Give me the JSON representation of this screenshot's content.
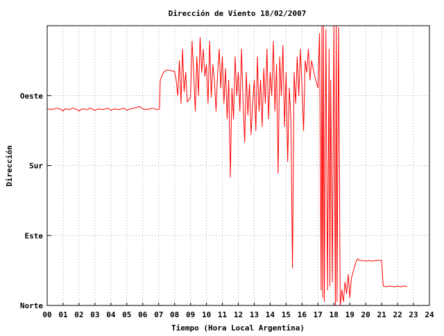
{
  "chart_data": {
    "type": "line",
    "title": "Dirección de Viento 18/02/2007",
    "xlabel": "Tiempo (Hora Local Argentina)",
    "ylabel": "Dirección",
    "xlim": [
      0,
      24
    ],
    "ylim": [
      0,
      360
    ],
    "x_ticks": [
      {
        "value": 0,
        "label": "00"
      },
      {
        "value": 1,
        "label": "01"
      },
      {
        "value": 2,
        "label": "02"
      },
      {
        "value": 3,
        "label": "03"
      },
      {
        "value": 4,
        "label": "04"
      },
      {
        "value": 5,
        "label": "05"
      },
      {
        "value": 6,
        "label": "06"
      },
      {
        "value": 7,
        "label": "07"
      },
      {
        "value": 8,
        "label": "08"
      },
      {
        "value": 9,
        "label": "09"
      },
      {
        "value": 10,
        "label": "10"
      },
      {
        "value": 11,
        "label": "11"
      },
      {
        "value": 12,
        "label": "12"
      },
      {
        "value": 13,
        "label": "13"
      },
      {
        "value": 14,
        "label": "14"
      },
      {
        "value": 15,
        "label": "15"
      },
      {
        "value": 16,
        "label": "16"
      },
      {
        "value": 17,
        "label": "17"
      },
      {
        "value": 18,
        "label": "18"
      },
      {
        "value": 19,
        "label": "19"
      },
      {
        "value": 20,
        "label": "20"
      },
      {
        "value": 21,
        "label": "21"
      },
      {
        "value": 22,
        "label": "22"
      },
      {
        "value": 23,
        "label": "23"
      },
      {
        "value": 24,
        "label": "24"
      }
    ],
    "y_ticks": [
      {
        "value": 0,
        "label": "Norte"
      },
      {
        "value": 90,
        "label": "Este"
      },
      {
        "value": 180,
        "label": "Sur"
      },
      {
        "value": 270,
        "label": "Oeste"
      }
    ],
    "grid": true,
    "series": [
      {
        "color": "#ff0000",
        "points": [
          [
            0.0,
            253
          ],
          [
            0.3,
            252
          ],
          [
            0.6,
            254
          ],
          [
            0.9,
            252
          ],
          [
            1.0,
            250
          ],
          [
            1.1,
            253
          ],
          [
            1.4,
            252
          ],
          [
            1.6,
            254
          ],
          [
            1.9,
            252
          ],
          [
            2.0,
            250
          ],
          [
            2.2,
            253
          ],
          [
            2.5,
            252
          ],
          [
            2.7,
            254
          ],
          [
            3.0,
            251
          ],
          [
            3.2,
            253
          ],
          [
            3.5,
            252
          ],
          [
            3.8,
            254
          ],
          [
            4.0,
            251
          ],
          [
            4.2,
            253
          ],
          [
            4.5,
            252
          ],
          [
            4.8,
            254
          ],
          [
            5.0,
            251
          ],
          [
            5.2,
            253
          ],
          [
            5.5,
            254
          ],
          [
            5.8,
            256
          ],
          [
            6.0,
            253
          ],
          [
            6.3,
            252
          ],
          [
            6.6,
            254
          ],
          [
            6.9,
            252
          ],
          [
            7.05,
            253
          ],
          [
            7.1,
            290
          ],
          [
            7.3,
            300
          ],
          [
            7.5,
            303
          ],
          [
            7.8,
            302
          ],
          [
            8.0,
            301
          ],
          [
            8.1,
            290
          ],
          [
            8.2,
            270
          ],
          [
            8.3,
            315
          ],
          [
            8.4,
            260
          ],
          [
            8.5,
            330
          ],
          [
            8.6,
            275
          ],
          [
            8.7,
            300
          ],
          [
            8.8,
            262
          ],
          [
            9.0,
            268
          ],
          [
            9.1,
            340
          ],
          [
            9.2,
            300
          ],
          [
            9.3,
            250
          ],
          [
            9.4,
            320
          ],
          [
            9.5,
            270
          ],
          [
            9.6,
            345
          ],
          [
            9.7,
            300
          ],
          [
            9.8,
            330
          ],
          [
            9.9,
            295
          ],
          [
            10.0,
            310
          ],
          [
            10.1,
            260
          ],
          [
            10.2,
            340
          ],
          [
            10.3,
            268
          ],
          [
            10.4,
            310
          ],
          [
            10.5,
            290
          ],
          [
            10.6,
            250
          ],
          [
            10.7,
            300
          ],
          [
            10.8,
            330
          ],
          [
            10.9,
            280
          ],
          [
            11.0,
            320
          ],
          [
            11.1,
            260
          ],
          [
            11.2,
            305
          ],
          [
            11.3,
            240
          ],
          [
            11.4,
            290
          ],
          [
            11.5,
            165
          ],
          [
            11.6,
            280
          ],
          [
            11.7,
            240
          ],
          [
            11.8,
            320
          ],
          [
            11.9,
            270
          ],
          [
            12.0,
            300
          ],
          [
            12.1,
            250
          ],
          [
            12.2,
            330
          ],
          [
            12.3,
            260
          ],
          [
            12.4,
            210
          ],
          [
            12.5,
            300
          ],
          [
            12.6,
            245
          ],
          [
            12.7,
            285
          ],
          [
            12.8,
            220
          ],
          [
            12.9,
            260
          ],
          [
            13.0,
            290
          ],
          [
            13.1,
            225
          ],
          [
            13.2,
            320
          ],
          [
            13.3,
            250
          ],
          [
            13.4,
            290
          ],
          [
            13.5,
            230
          ],
          [
            13.6,
            305
          ],
          [
            13.7,
            260
          ],
          [
            13.8,
            330
          ],
          [
            13.9,
            240
          ],
          [
            14.0,
            300
          ],
          [
            14.1,
            270
          ],
          [
            14.2,
            340
          ],
          [
            14.3,
            250
          ],
          [
            14.4,
            310
          ],
          [
            14.5,
            170
          ],
          [
            14.6,
            320
          ],
          [
            14.7,
            270
          ],
          [
            14.8,
            335
          ],
          [
            14.9,
            230
          ],
          [
            15.0,
            300
          ],
          [
            15.1,
            185
          ],
          [
            15.2,
            280
          ],
          [
            15.3,
            240
          ],
          [
            15.4,
            48
          ],
          [
            15.5,
            300
          ],
          [
            15.6,
            260
          ],
          [
            15.7,
            320
          ],
          [
            15.8,
            270
          ],
          [
            15.9,
            330
          ],
          [
            16.0,
            280
          ],
          [
            16.1,
            225
          ],
          [
            16.2,
            315
          ],
          [
            16.3,
            300
          ],
          [
            16.4,
            330
          ],
          [
            16.5,
            290
          ],
          [
            16.6,
            315
          ],
          [
            16.8,
            295
          ],
          [
            17.0,
            280
          ],
          [
            17.1,
            350
          ],
          [
            17.2,
            20
          ],
          [
            17.25,
            360
          ],
          [
            17.3,
            10
          ],
          [
            17.35,
            360
          ],
          [
            17.4,
            5
          ],
          [
            17.5,
            355
          ],
          [
            17.6,
            20
          ],
          [
            17.7,
            330
          ],
          [
            17.75,
            25
          ],
          [
            17.8,
            290
          ],
          [
            17.9,
            30
          ],
          [
            18.0,
            360
          ],
          [
            18.1,
            0
          ],
          [
            18.15,
            360
          ],
          [
            18.2,
            5
          ],
          [
            18.3,
            358
          ],
          [
            18.4,
            0
          ],
          [
            18.5,
            20
          ],
          [
            18.6,
            5
          ],
          [
            18.7,
            30
          ],
          [
            18.8,
            15
          ],
          [
            18.9,
            40
          ],
          [
            19.0,
            10
          ],
          [
            19.1,
            35
          ],
          [
            19.3,
            50
          ],
          [
            19.4,
            57
          ],
          [
            19.5,
            60
          ],
          [
            19.6,
            58
          ],
          [
            19.8,
            58
          ],
          [
            20.0,
            57
          ],
          [
            20.2,
            58
          ],
          [
            20.4,
            57
          ],
          [
            20.6,
            58
          ],
          [
            20.8,
            58
          ],
          [
            21.0,
            58
          ],
          [
            21.1,
            25
          ],
          [
            21.3,
            24
          ],
          [
            21.5,
            25
          ],
          [
            21.8,
            24
          ],
          [
            22.0,
            25
          ],
          [
            22.2,
            24
          ],
          [
            22.4,
            25
          ],
          [
            22.6,
            24
          ]
        ]
      }
    ]
  }
}
